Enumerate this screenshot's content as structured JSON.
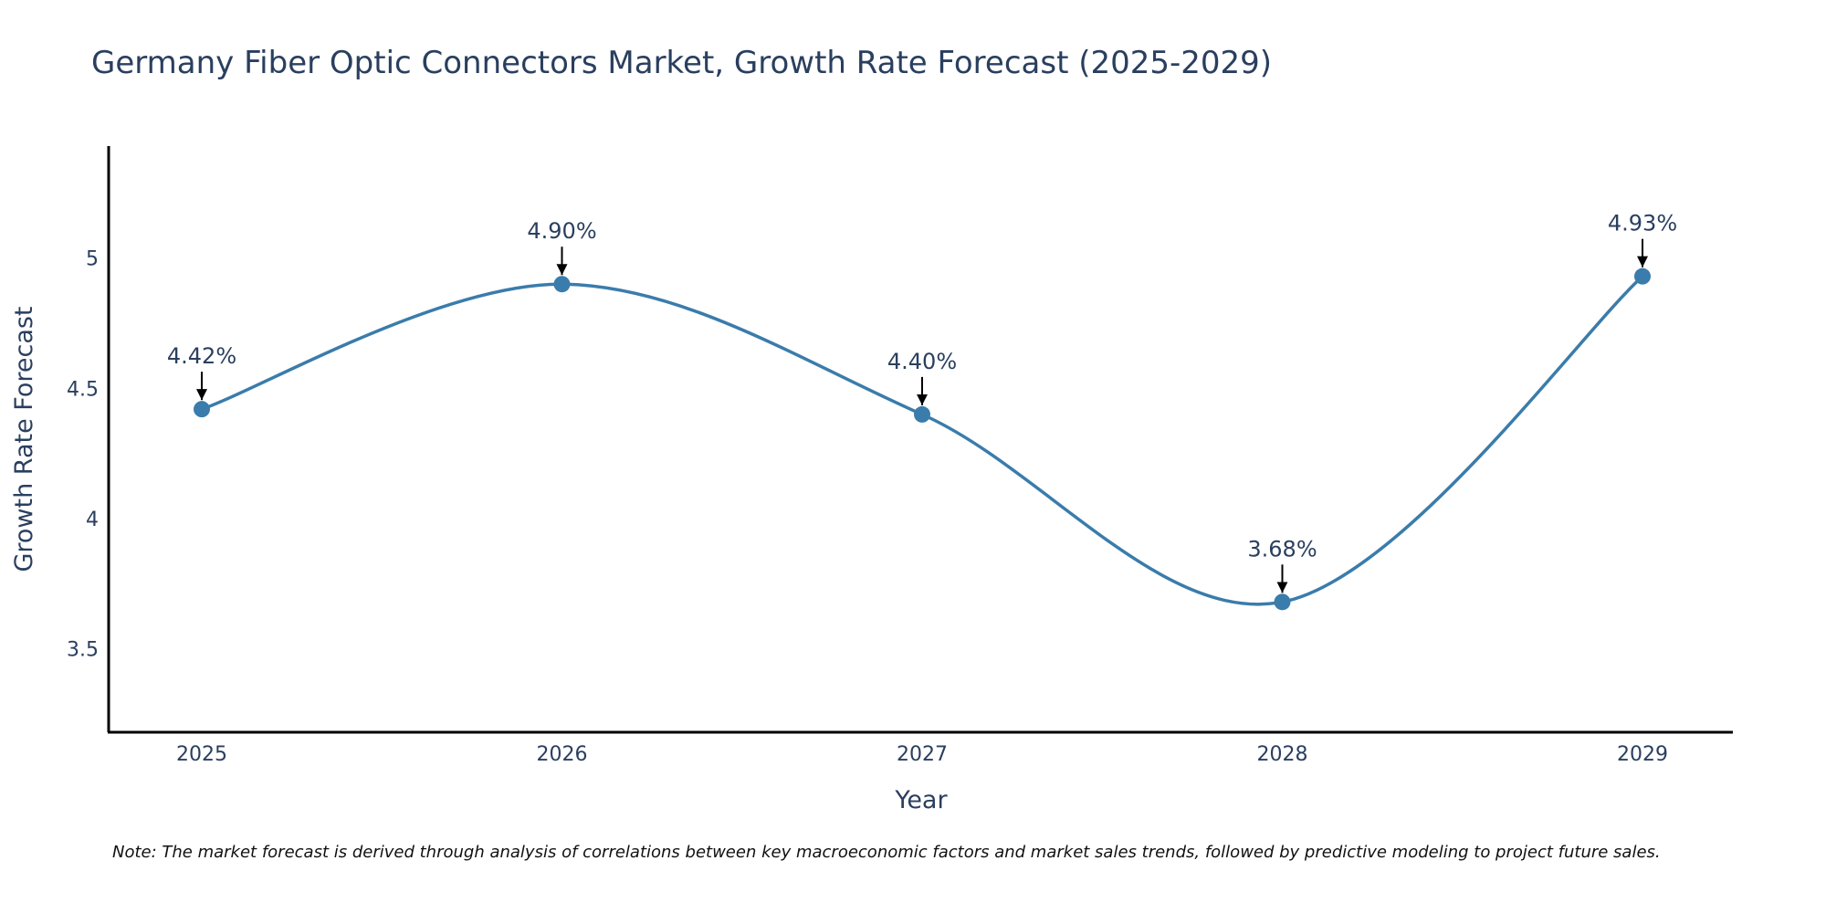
{
  "chart_data": {
    "type": "line",
    "title": "Germany Fiber Optic Connectors Market, Growth Rate Forecast (2025-2029)",
    "xlabel": "Year",
    "ylabel": "Growth Rate Forecast",
    "categories": [
      "2025",
      "2026",
      "2027",
      "2028",
      "2029"
    ],
    "values": [
      4.42,
      4.9,
      4.4,
      3.68,
      4.93
    ],
    "data_labels": [
      "4.42%",
      "4.90%",
      "4.40%",
      "3.68%",
      "4.93%"
    ],
    "ylim": [
      3.18,
      5.43
    ],
    "yticks": [
      3.5,
      4,
      4.5,
      5
    ],
    "ytick_labels": [
      "3.5",
      "4",
      "4.5",
      "5"
    ],
    "line_shape": "spline",
    "marker": "circle",
    "grid": false,
    "note": "Note: The market forecast is derived through analysis of correlations between key macroeconomic factors and market sales trends, followed by predictive modeling to project future sales."
  },
  "colors": {
    "line": "#3a7cab",
    "text": "#2a3f5f",
    "axis": "#000000",
    "arrow": "#000000"
  }
}
